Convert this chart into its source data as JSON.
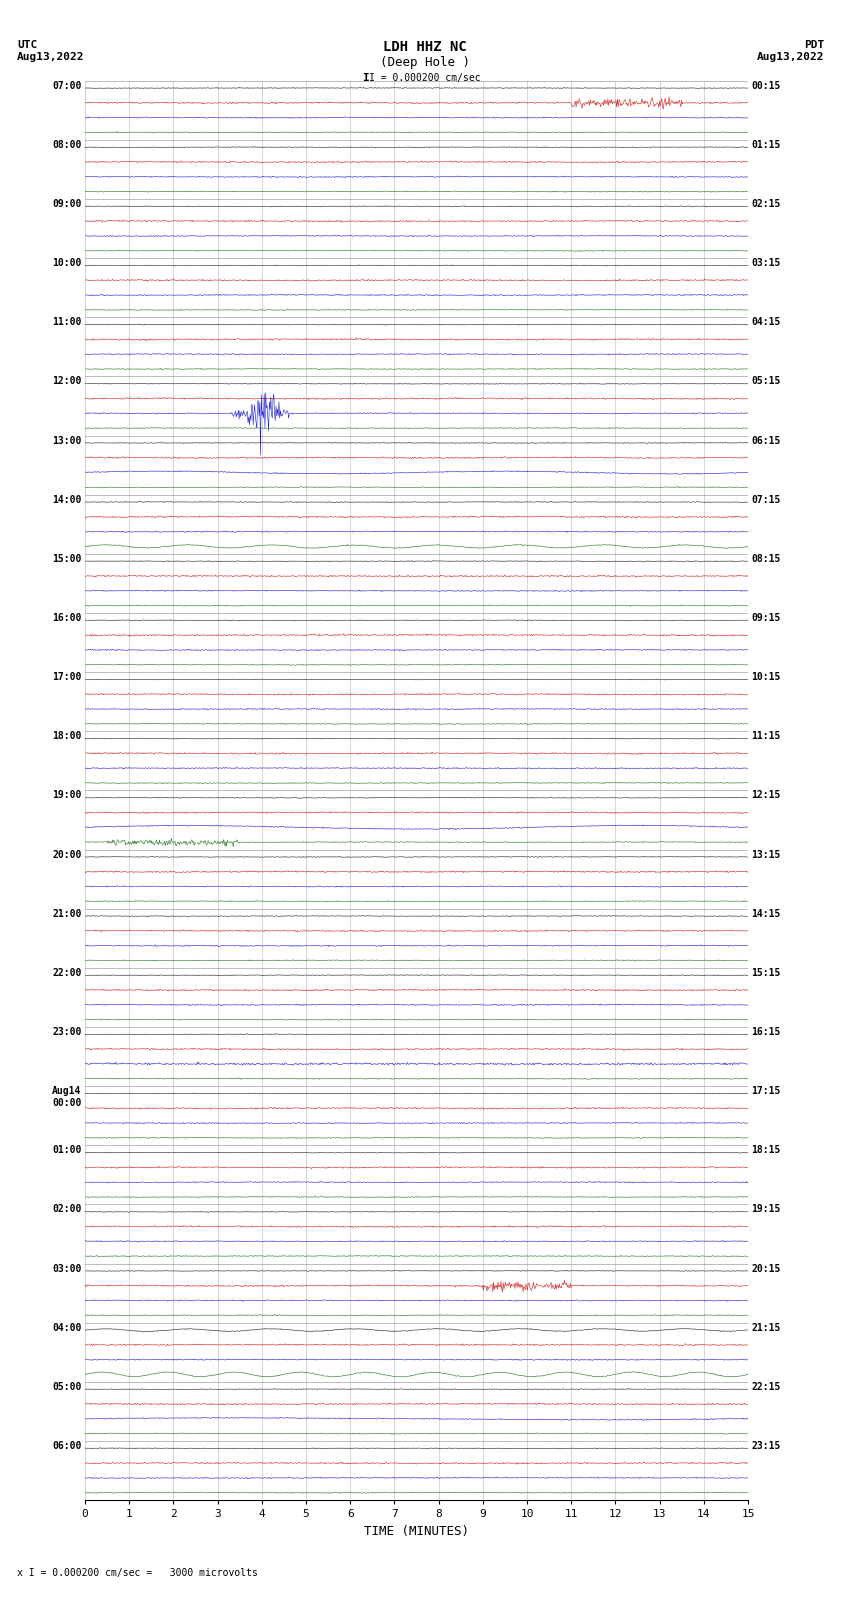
{
  "title_line1": "LDH HHZ NC",
  "title_line2": "(Deep Hole )",
  "scale_label": "I = 0.000200 cm/sec",
  "bottom_label": "x I = 0.000200 cm/sec =   3000 microvolts",
  "left_header": "UTC\nAug13,2022",
  "right_header": "PDT\nAug13,2022",
  "xlabel": "TIME (MINUTES)",
  "bg_color": "#ffffff",
  "trace_colors": [
    "#000000",
    "#cc0000",
    "#0000cc",
    "#006600"
  ],
  "grid_color": "#888888",
  "left_times": [
    "07:00",
    "08:00",
    "09:00",
    "10:00",
    "11:00",
    "12:00",
    "13:00",
    "14:00",
    "15:00",
    "16:00",
    "17:00",
    "18:00",
    "19:00",
    "20:00",
    "21:00",
    "22:00",
    "23:00",
    "Aug14\n00:00",
    "01:00",
    "02:00",
    "03:00",
    "04:00",
    "05:00",
    "06:00"
  ],
  "right_times": [
    "00:15",
    "01:15",
    "02:15",
    "03:15",
    "04:15",
    "05:15",
    "06:15",
    "07:15",
    "08:15",
    "09:15",
    "10:15",
    "11:15",
    "12:15",
    "13:15",
    "14:15",
    "15:15",
    "16:15",
    "17:15",
    "18:15",
    "19:15",
    "20:15",
    "21:15",
    "22:15",
    "23:15"
  ],
  "n_hours": 24,
  "traces_per_hour": 4,
  "noise_amp_black": 0.04,
  "noise_amp_red": 0.08,
  "noise_amp_blue": 0.06,
  "noise_amp_green": 0.05,
  "xmin": 0,
  "xmax": 15,
  "xticks": [
    0,
    1,
    2,
    3,
    4,
    5,
    6,
    7,
    8,
    9,
    10,
    11,
    12,
    13,
    14,
    15
  ],
  "figsize": [
    8.5,
    16.13
  ],
  "dpi": 100
}
